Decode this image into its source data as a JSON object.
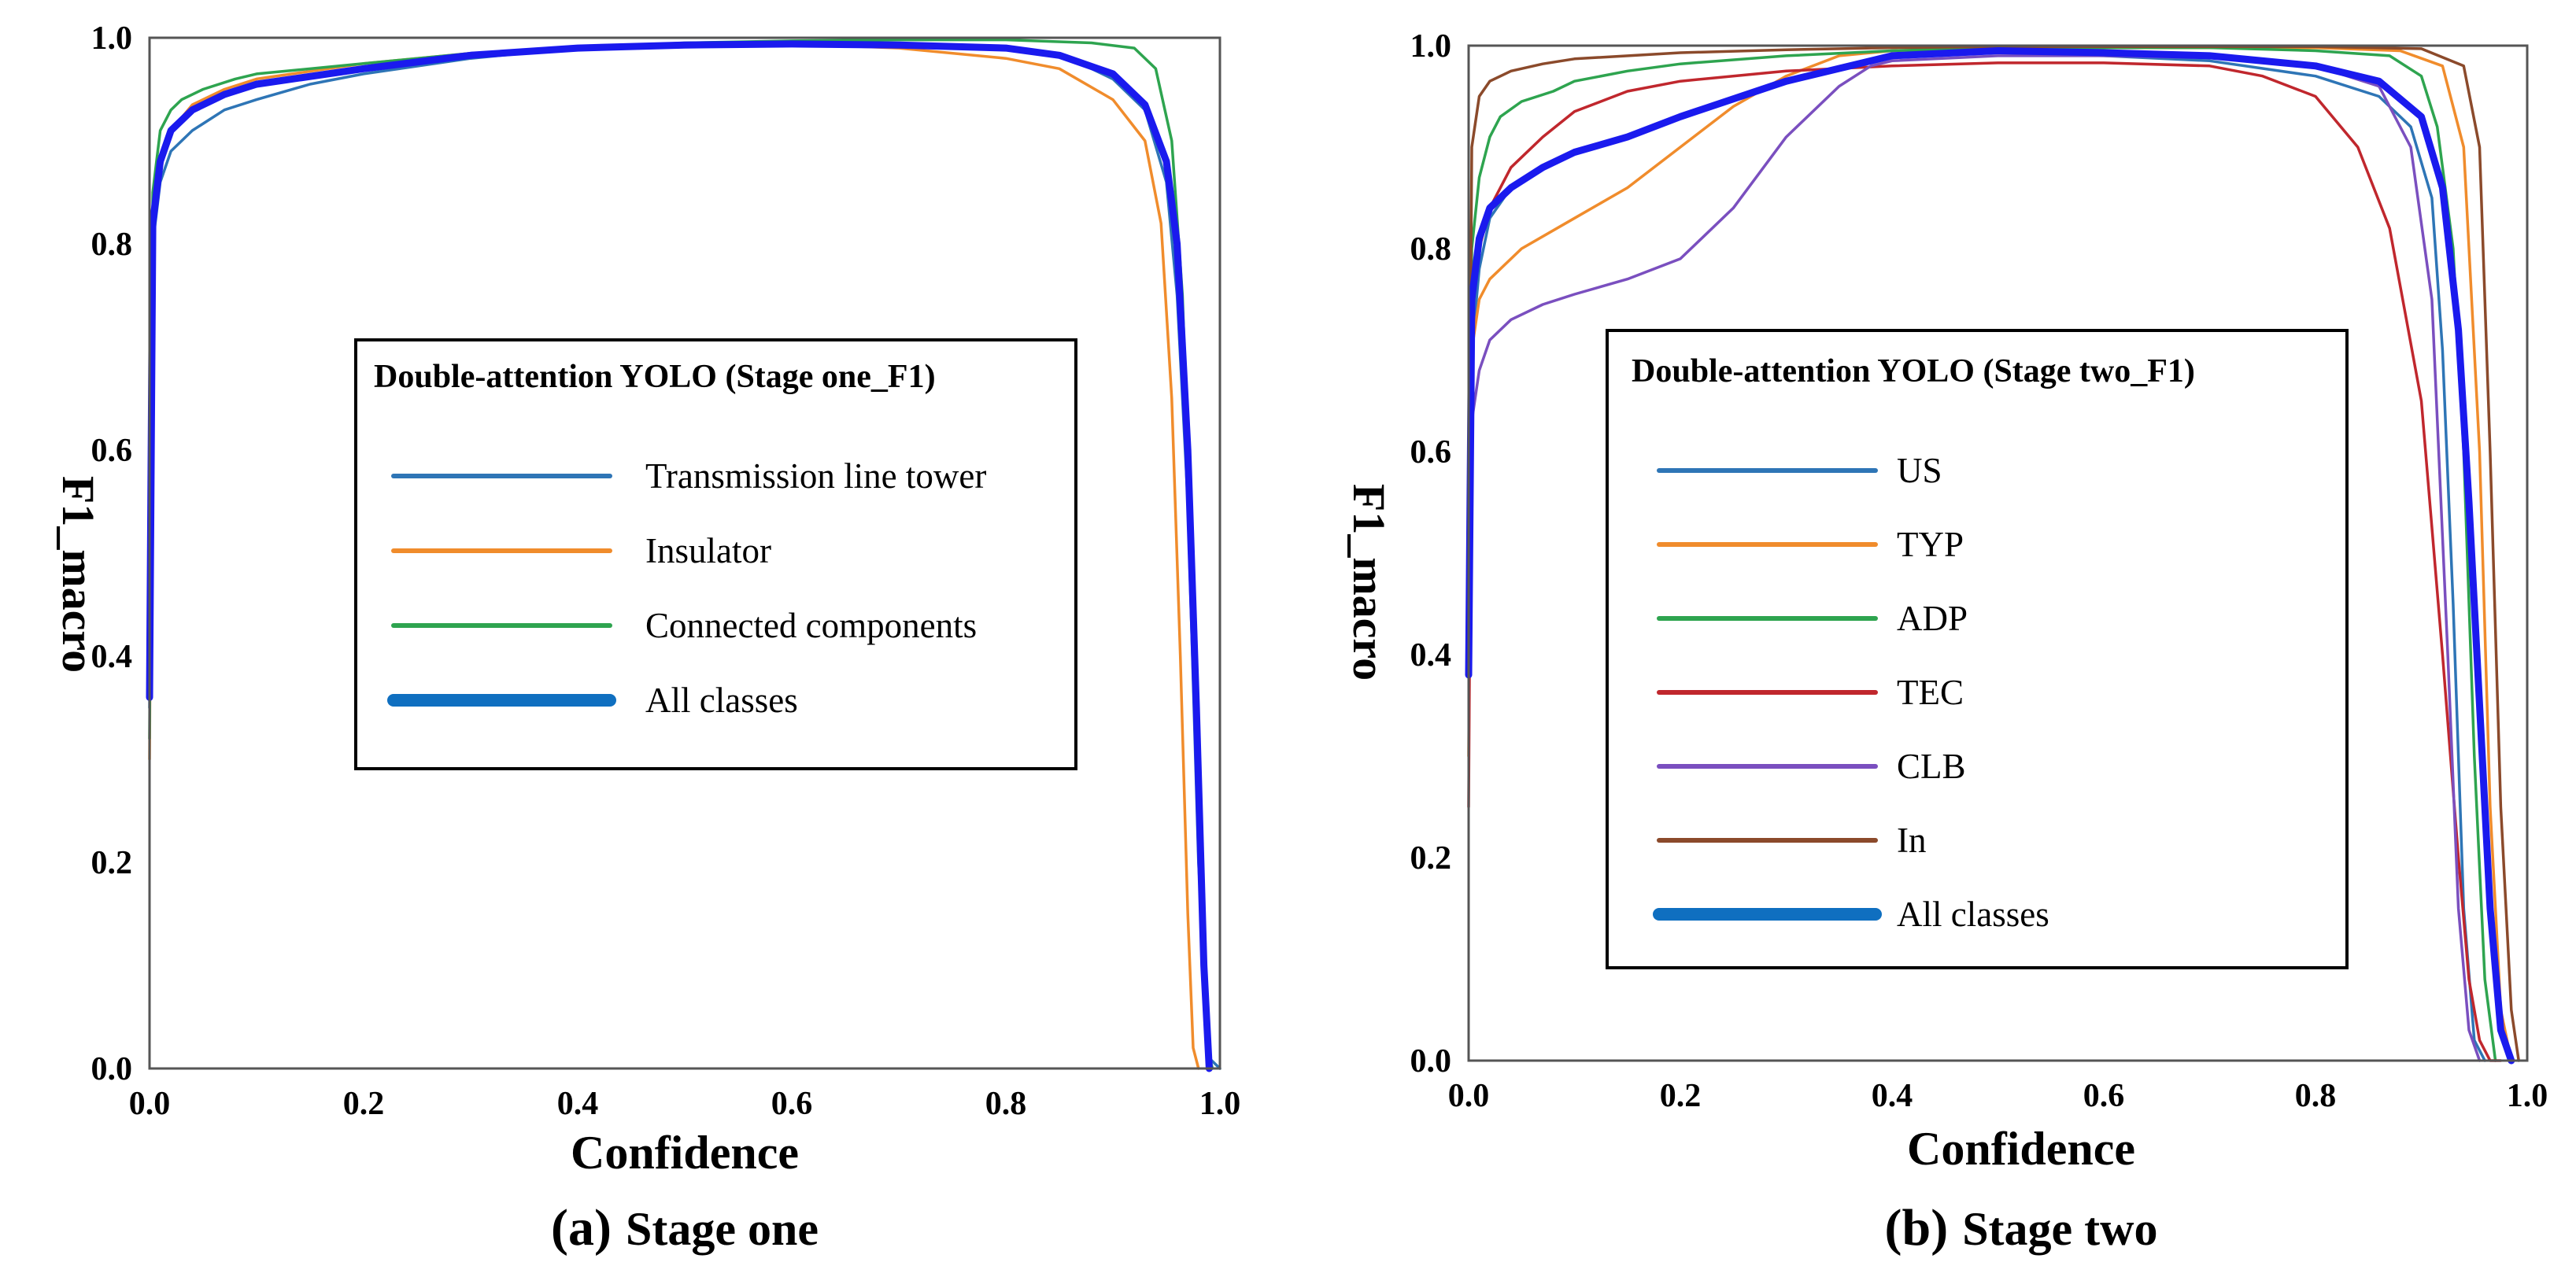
{
  "chart_data": [
    {
      "type": "line",
      "caption_letter": "(a)",
      "caption_text": "Stage one",
      "xlabel": "Confidence",
      "ylabel": "F1_macro",
      "xlim": [
        0,
        1
      ],
      "ylim": [
        0,
        1
      ],
      "xticks": [
        "0.0",
        "0.2",
        "0.4",
        "0.6",
        "0.8",
        "1.0"
      ],
      "yticks": [
        "0.0",
        "0.2",
        "0.4",
        "0.6",
        "0.8",
        "1.0"
      ],
      "grid": false,
      "legend_title": "Double-attention YOLO (Stage one_F1)",
      "legend_position": "center",
      "series": [
        {
          "name": "Transmission line tower",
          "color": "#2e75b6",
          "width": "thin",
          "x": [
            0,
            0.003,
            0.01,
            0.02,
            0.04,
            0.07,
            0.1,
            0.15,
            0.2,
            0.3,
            0.4,
            0.5,
            0.6,
            0.7,
            0.8,
            0.86,
            0.9,
            0.93,
            0.95,
            0.96,
            0.97,
            0.98,
            0.99,
            1.0
          ],
          "y": [
            0.35,
            0.8,
            0.86,
            0.89,
            0.91,
            0.93,
            0.94,
            0.955,
            0.965,
            0.98,
            0.99,
            0.993,
            0.995,
            0.993,
            0.99,
            0.98,
            0.96,
            0.93,
            0.86,
            0.75,
            0.55,
            0.2,
            0.01,
            0.0
          ]
        },
        {
          "name": "Insulator",
          "color": "#f08c2c",
          "width": "thin",
          "x": [
            0,
            0.003,
            0.01,
            0.02,
            0.04,
            0.07,
            0.1,
            0.2,
            0.3,
            0.4,
            0.5,
            0.6,
            0.7,
            0.8,
            0.85,
            0.9,
            0.93,
            0.945,
            0.955,
            0.963,
            0.97,
            0.975,
            0.98
          ],
          "y": [
            0.3,
            0.82,
            0.88,
            0.91,
            0.935,
            0.95,
            0.96,
            0.975,
            0.985,
            0.99,
            0.993,
            0.994,
            0.99,
            0.98,
            0.97,
            0.94,
            0.9,
            0.82,
            0.65,
            0.4,
            0.15,
            0.02,
            0.0
          ]
        },
        {
          "name": "Connected components",
          "color": "#2ea44f",
          "width": "thin",
          "x": [
            0,
            0.003,
            0.01,
            0.02,
            0.03,
            0.05,
            0.08,
            0.1,
            0.2,
            0.3,
            0.4,
            0.5,
            0.6,
            0.7,
            0.8,
            0.88,
            0.92,
            0.94,
            0.955,
            0.965,
            0.975,
            0.982,
            0.988,
            0.993
          ],
          "y": [
            0.32,
            0.85,
            0.91,
            0.93,
            0.94,
            0.95,
            0.96,
            0.965,
            0.975,
            0.985,
            0.99,
            0.995,
            0.997,
            0.998,
            0.998,
            0.995,
            0.99,
            0.97,
            0.9,
            0.75,
            0.45,
            0.15,
            0.02,
            0.0
          ]
        },
        {
          "name": "All classes",
          "color": "#1a1aee",
          "width": "thick",
          "x": [
            0,
            0.003,
            0.01,
            0.02,
            0.04,
            0.07,
            0.1,
            0.2,
            0.3,
            0.4,
            0.5,
            0.6,
            0.7,
            0.8,
            0.85,
            0.9,
            0.93,
            0.95,
            0.96,
            0.97,
            0.978,
            0.985,
            0.99
          ],
          "y": [
            0.36,
            0.82,
            0.88,
            0.91,
            0.93,
            0.945,
            0.955,
            0.97,
            0.983,
            0.99,
            0.993,
            0.994,
            0.993,
            0.99,
            0.983,
            0.965,
            0.935,
            0.88,
            0.8,
            0.6,
            0.35,
            0.1,
            0.0
          ]
        }
      ]
    },
    {
      "type": "line",
      "caption_letter": "(b)",
      "caption_text": "Stage two",
      "xlabel": "Confidence",
      "ylabel": "F1_macro",
      "xlim": [
        0,
        1
      ],
      "ylim": [
        0,
        1
      ],
      "xticks": [
        "0.0",
        "0.2",
        "0.4",
        "0.6",
        "0.8",
        "1.0"
      ],
      "yticks": [
        "0.0",
        "0.2",
        "0.4",
        "0.6",
        "0.8",
        "1.0"
      ],
      "grid": false,
      "legend_title": "Double-attention YOLO (Stage two_F1)",
      "legend_position": "center",
      "series": [
        {
          "name": "US",
          "color": "#2e75b6",
          "width": "thin",
          "x": [
            0,
            0.003,
            0.01,
            0.02,
            0.04,
            0.07,
            0.1,
            0.15,
            0.2,
            0.3,
            0.4,
            0.5,
            0.6,
            0.7,
            0.8,
            0.86,
            0.89,
            0.91,
            0.92,
            0.93,
            0.94,
            0.95,
            0.96
          ],
          "y": [
            0.4,
            0.7,
            0.78,
            0.83,
            0.86,
            0.88,
            0.895,
            0.91,
            0.93,
            0.965,
            0.99,
            0.993,
            0.99,
            0.985,
            0.97,
            0.95,
            0.92,
            0.85,
            0.7,
            0.45,
            0.15,
            0.02,
            0.0
          ]
        },
        {
          "name": "TYP",
          "color": "#f08c2c",
          "width": "thin",
          "x": [
            0,
            0.003,
            0.01,
            0.02,
            0.05,
            0.1,
            0.15,
            0.2,
            0.25,
            0.3,
            0.35,
            0.4,
            0.5,
            0.6,
            0.7,
            0.8,
            0.88,
            0.92,
            0.94,
            0.955,
            0.965,
            0.975,
            0.985
          ],
          "y": [
            0.3,
            0.7,
            0.75,
            0.77,
            0.8,
            0.83,
            0.86,
            0.9,
            0.94,
            0.97,
            0.99,
            0.995,
            0.998,
            0.998,
            0.998,
            0.998,
            0.995,
            0.98,
            0.9,
            0.6,
            0.25,
            0.05,
            0.0
          ]
        },
        {
          "name": "ADP",
          "color": "#2ea44f",
          "width": "thin",
          "x": [
            0,
            0.003,
            0.01,
            0.02,
            0.03,
            0.05,
            0.08,
            0.1,
            0.15,
            0.2,
            0.3,
            0.4,
            0.5,
            0.6,
            0.7,
            0.8,
            0.87,
            0.9,
            0.915,
            0.93,
            0.94,
            0.95,
            0.96,
            0.97
          ],
          "y": [
            0.4,
            0.8,
            0.87,
            0.91,
            0.93,
            0.945,
            0.955,
            0.965,
            0.975,
            0.982,
            0.99,
            0.995,
            0.998,
            0.998,
            0.998,
            0.995,
            0.99,
            0.97,
            0.92,
            0.8,
            0.6,
            0.3,
            0.08,
            0.0
          ]
        },
        {
          "name": "TEC",
          "color": "#c0272d",
          "width": "thin",
          "x": [
            0,
            0.003,
            0.01,
            0.02,
            0.04,
            0.07,
            0.1,
            0.15,
            0.2,
            0.3,
            0.4,
            0.5,
            0.6,
            0.7,
            0.75,
            0.8,
            0.84,
            0.87,
            0.9,
            0.92,
            0.935,
            0.945,
            0.955,
            0.965,
            0.975
          ],
          "y": [
            0.25,
            0.75,
            0.8,
            0.84,
            0.88,
            0.91,
            0.935,
            0.955,
            0.965,
            0.975,
            0.98,
            0.983,
            0.983,
            0.98,
            0.97,
            0.95,
            0.9,
            0.82,
            0.65,
            0.4,
            0.2,
            0.08,
            0.02,
            0.0,
            0.0
          ]
        },
        {
          "name": "CLB",
          "color": "#7a4fbf",
          "width": "thin",
          "x": [
            0,
            0.003,
            0.01,
            0.02,
            0.04,
            0.07,
            0.1,
            0.15,
            0.2,
            0.25,
            0.3,
            0.35,
            0.38,
            0.4,
            0.5,
            0.6,
            0.7,
            0.8,
            0.86,
            0.89,
            0.91,
            0.925,
            0.935,
            0.945,
            0.955
          ],
          "y": [
            0.4,
            0.63,
            0.68,
            0.71,
            0.73,
            0.745,
            0.755,
            0.77,
            0.79,
            0.84,
            0.91,
            0.96,
            0.98,
            0.985,
            0.99,
            0.99,
            0.988,
            0.98,
            0.96,
            0.9,
            0.75,
            0.4,
            0.15,
            0.03,
            0.0
          ]
        },
        {
          "name": "In",
          "color": "#8b4a2b",
          "width": "thin",
          "x": [
            0,
            0.003,
            0.01,
            0.02,
            0.04,
            0.07,
            0.1,
            0.2,
            0.3,
            0.4,
            0.5,
            0.6,
            0.7,
            0.8,
            0.9,
            0.94,
            0.955,
            0.965,
            0.975,
            0.985,
            0.992
          ],
          "y": [
            0.45,
            0.9,
            0.95,
            0.965,
            0.975,
            0.982,
            0.987,
            0.993,
            0.996,
            0.998,
            0.999,
            0.999,
            0.999,
            0.999,
            0.997,
            0.98,
            0.9,
            0.6,
            0.25,
            0.05,
            0.0
          ]
        },
        {
          "name": "All classes",
          "color": "#1a1aee",
          "width": "thick",
          "x": [
            0,
            0.003,
            0.01,
            0.02,
            0.04,
            0.07,
            0.1,
            0.15,
            0.2,
            0.3,
            0.4,
            0.5,
            0.6,
            0.7,
            0.8,
            0.86,
            0.9,
            0.92,
            0.935,
            0.945,
            0.955,
            0.965,
            0.975,
            0.985
          ],
          "y": [
            0.38,
            0.75,
            0.81,
            0.84,
            0.86,
            0.88,
            0.895,
            0.91,
            0.93,
            0.965,
            0.99,
            0.995,
            0.993,
            0.99,
            0.98,
            0.965,
            0.93,
            0.86,
            0.72,
            0.55,
            0.35,
            0.15,
            0.03,
            0.0
          ]
        }
      ]
    }
  ]
}
